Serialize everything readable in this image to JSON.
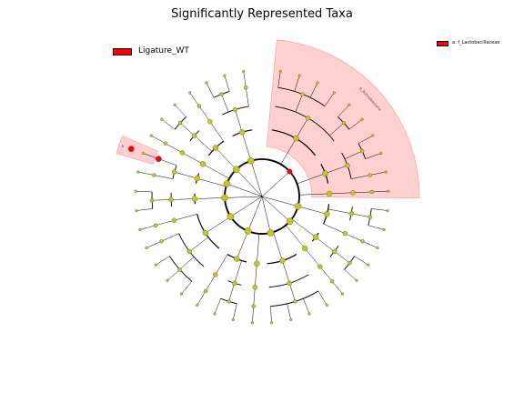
{
  "title": "Significantly Represented Taxa",
  "colors": {
    "enriched": "#ff0000",
    "node_default": "#c8c814",
    "clade_shade": "#ffcccc",
    "branch": "#000000"
  },
  "legend": [
    {
      "label": "Ligature_WT",
      "color": "#ff0000"
    },
    {
      "label": "a: f_Lactobacillaceae",
      "color": "#ff0000"
    }
  ],
  "highlighted_clades": [
    {
      "label": "p_Actinobacteria",
      "color": "#ffcccc"
    },
    {
      "label": "a",
      "color": "#ffcccc"
    }
  ]
}
